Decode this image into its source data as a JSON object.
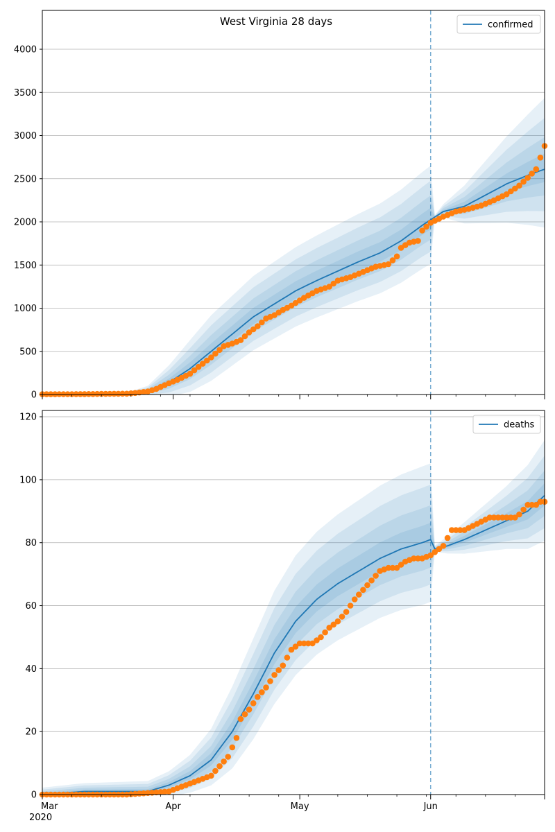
{
  "title": "West Virginia 28 days",
  "colors": {
    "line": "#1f77b4",
    "observed": "#ff7f0e",
    "band": "#1f77b4",
    "grid": "#b0b0b0"
  },
  "x_ticks": [
    {
      "label": "Mar",
      "day": 0,
      "sub": "2020"
    },
    {
      "label": "Apr",
      "day": 31,
      "sub": ""
    },
    {
      "label": "May",
      "day": 61,
      "sub": ""
    },
    {
      "label": "Jun",
      "day": 92,
      "sub": ""
    }
  ],
  "chart_data": [
    {
      "type": "line",
      "name": "confirmed-panel",
      "legend": "confirmed",
      "x_range": [
        "2020-03-01",
        "2020-06-28"
      ],
      "ylim": [
        0,
        4450
      ],
      "y_ticks": [
        0,
        500,
        1000,
        1500,
        2000,
        2500,
        3000,
        3500,
        4000
      ],
      "forecast_start": "2020-06-01",
      "grid": "horizontal",
      "legend_position": "top-right",
      "model_points": [
        [
          0,
          0
        ],
        [
          15,
          3
        ],
        [
          20,
          8
        ],
        [
          25,
          35
        ],
        [
          30,
          140
        ],
        [
          35,
          300
        ],
        [
          40,
          500
        ],
        [
          45,
          700
        ],
        [
          50,
          900
        ],
        [
          55,
          1050
        ],
        [
          60,
          1200
        ],
        [
          65,
          1320
        ],
        [
          70,
          1430
        ],
        [
          75,
          1540
        ],
        [
          80,
          1640
        ],
        [
          85,
          1780
        ],
        [
          90,
          1960
        ],
        [
          95,
          2120
        ],
        [
          100,
          2180
        ],
        [
          105,
          2310
        ],
        [
          110,
          2440
        ],
        [
          115,
          2540
        ],
        [
          119,
          2610
        ]
      ],
      "band_width": [
        [
          0,
          2
        ],
        [
          20,
          12
        ],
        [
          25,
          60
        ],
        [
          30,
          180
        ],
        [
          35,
          300
        ],
        [
          40,
          380
        ],
        [
          50,
          430
        ],
        [
          60,
          460
        ],
        [
          70,
          490
        ],
        [
          80,
          520
        ],
        [
          90,
          560
        ],
        [
          92,
          570
        ],
        [
          93,
          20
        ],
        [
          100,
          220
        ],
        [
          110,
          500
        ],
        [
          119,
          750
        ]
      ],
      "observed_points": [
        [
          0,
          3
        ],
        [
          10,
          5
        ],
        [
          20,
          10
        ],
        [
          22,
          18
        ],
        [
          25,
          35
        ],
        [
          27,
          65
        ],
        [
          30,
          130
        ],
        [
          32,
          170
        ],
        [
          35,
          240
        ],
        [
          37,
          320
        ],
        [
          40,
          430
        ],
        [
          43,
          560
        ],
        [
          45,
          590
        ],
        [
          47,
          630
        ],
        [
          49,
          720
        ],
        [
          51,
          790
        ],
        [
          53,
          880
        ],
        [
          55,
          920
        ],
        [
          57,
          980
        ],
        [
          59,
          1030
        ],
        [
          62,
          1120
        ],
        [
          65,
          1200
        ],
        [
          68,
          1250
        ],
        [
          70,
          1320
        ],
        [
          73,
          1360
        ],
        [
          76,
          1420
        ],
        [
          79,
          1480
        ],
        [
          82,
          1510
        ],
        [
          84,
          1600
        ],
        [
          85,
          1700
        ],
        [
          87,
          1760
        ],
        [
          89,
          1780
        ],
        [
          90,
          1900
        ],
        [
          92,
          1990
        ],
        [
          95,
          2060
        ],
        [
          98,
          2120
        ],
        [
          101,
          2150
        ],
        [
          104,
          2190
        ],
        [
          107,
          2250
        ],
        [
          110,
          2320
        ],
        [
          113,
          2420
        ],
        [
          115,
          2510
        ],
        [
          117,
          2610
        ],
        [
          119,
          2880
        ]
      ]
    },
    {
      "type": "line",
      "name": "deaths-panel",
      "legend": "deaths",
      "x_range": [
        "2020-03-01",
        "2020-06-28"
      ],
      "ylim": [
        0,
        122
      ],
      "y_ticks": [
        0,
        20,
        40,
        60,
        80,
        100,
        120
      ],
      "forecast_start": "2020-06-01",
      "grid": "horizontal",
      "legend_position": "top-right",
      "model_points": [
        [
          0,
          0
        ],
        [
          10,
          1
        ],
        [
          25,
          1
        ],
        [
          30,
          3
        ],
        [
          35,
          6
        ],
        [
          40,
          11
        ],
        [
          45,
          20
        ],
        [
          50,
          32
        ],
        [
          55,
          45
        ],
        [
          60,
          55
        ],
        [
          65,
          62
        ],
        [
          70,
          67
        ],
        [
          75,
          71
        ],
        [
          80,
          75
        ],
        [
          85,
          78
        ],
        [
          90,
          80
        ],
        [
          92,
          81
        ],
        [
          93,
          78
        ],
        [
          96,
          79
        ],
        [
          100,
          81
        ],
        [
          105,
          84
        ],
        [
          110,
          87
        ],
        [
          115,
          90
        ],
        [
          119,
          95
        ]
      ],
      "band_width": [
        [
          0,
          2
        ],
        [
          25,
          3
        ],
        [
          30,
          4
        ],
        [
          35,
          6
        ],
        [
          40,
          9
        ],
        [
          45,
          13
        ],
        [
          50,
          16
        ],
        [
          55,
          18
        ],
        [
          60,
          19
        ],
        [
          70,
          20
        ],
        [
          80,
          21
        ],
        [
          90,
          22
        ],
        [
          92,
          22
        ],
        [
          93,
          1
        ],
        [
          100,
          5
        ],
        [
          110,
          10
        ],
        [
          119,
          16
        ]
      ],
      "observed_points": [
        [
          0,
          0
        ],
        [
          10,
          0
        ],
        [
          20,
          0
        ],
        [
          30,
          1
        ],
        [
          32,
          2
        ],
        [
          34,
          3
        ],
        [
          36,
          4
        ],
        [
          38,
          5
        ],
        [
          40,
          6
        ],
        [
          42,
          9
        ],
        [
          44,
          12
        ],
        [
          46,
          18
        ],
        [
          47,
          24
        ],
        [
          49,
          27
        ],
        [
          51,
          31
        ],
        [
          53,
          34
        ],
        [
          55,
          38
        ],
        [
          57,
          41
        ],
        [
          59,
          46
        ],
        [
          61,
          48
        ],
        [
          64,
          48
        ],
        [
          66,
          50
        ],
        [
          68,
          53
        ],
        [
          70,
          55
        ],
        [
          72,
          58
        ],
        [
          74,
          62
        ],
        [
          76,
          65
        ],
        [
          78,
          68
        ],
        [
          80,
          71
        ],
        [
          82,
          72
        ],
        [
          84,
          72
        ],
        [
          86,
          74
        ],
        [
          88,
          75
        ],
        [
          90,
          75
        ],
        [
          92,
          76
        ],
        [
          95,
          79
        ],
        [
          97,
          84
        ],
        [
          100,
          84
        ],
        [
          103,
          86
        ],
        [
          106,
          88
        ],
        [
          109,
          88
        ],
        [
          112,
          88
        ],
        [
          113,
          89
        ],
        [
          115,
          92
        ],
        [
          117,
          92
        ],
        [
          118,
          93
        ],
        [
          119,
          93
        ]
      ]
    }
  ]
}
